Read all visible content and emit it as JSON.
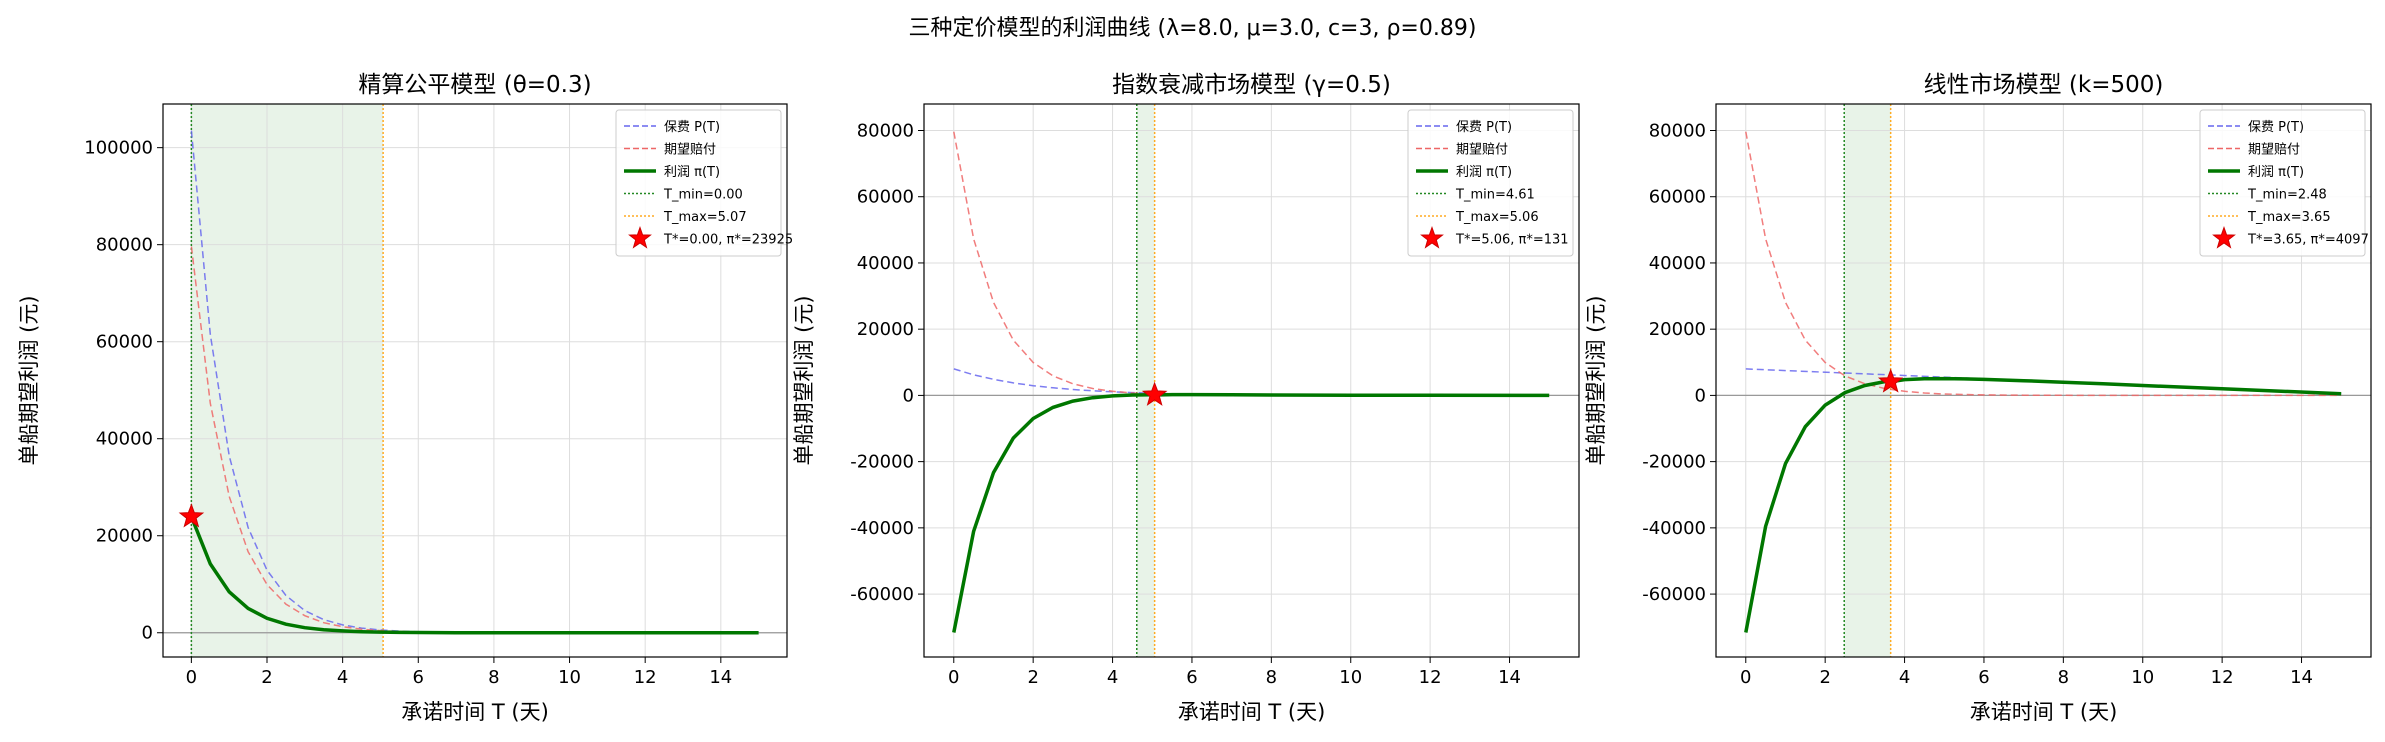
{
  "figure": {
    "suptitle": "三种定价模型的利润曲线  (λ=8.0, μ=3.0, c=3, ρ=0.89)"
  },
  "colors": {
    "premium": "#6666ee",
    "claims": "#ee6666",
    "profit": "#007700",
    "tmin": "#228822",
    "tmax": "#ffaa22",
    "star": "#ff0000",
    "shade": "#e8f3e8"
  },
  "chart_data": [
    {
      "type": "line",
      "title": "精算公平模型 (θ=0.3)",
      "xlabel": "承诺时间 T (天)",
      "ylabel": "单船期望利润 (元)",
      "xlim": [
        -0.75,
        15.75
      ],
      "ylim": [
        -5000,
        109000
      ],
      "xticks": [
        0,
        2,
        4,
        6,
        8,
        10,
        12,
        14
      ],
      "yticks": [
        0,
        20000,
        40000,
        60000,
        80000,
        100000
      ],
      "grid": true,
      "legend_position": "top-right",
      "legend": [
        "保费 P(T)",
        "期望赔付",
        "利润 π(T)",
        "T_min=0.00",
        "T_max=5.07",
        "T*=0.00, π*=23925"
      ],
      "series": [
        {
          "name": "保费 P(T)",
          "style": "dashed",
          "x": [
            0,
            0.5,
            1,
            1.5,
            2,
            2.5,
            3,
            3.5,
            4,
            4.5,
            5,
            5.5,
            6,
            7,
            8,
            9,
            10,
            12,
            15
          ],
          "y": [
            103500,
            61500,
            36500,
            21700,
            12900,
            7670,
            4560,
            2710,
            1610,
            957,
            569,
            338,
            201,
            71,
            25,
            9,
            3,
            0,
            0
          ]
        },
        {
          "name": "期望赔付",
          "style": "dashed",
          "x": [
            0,
            0.5,
            1,
            1.5,
            2,
            2.5,
            3,
            3.5,
            4,
            4.5,
            5,
            5.5,
            6,
            7,
            8,
            9,
            10,
            12,
            15
          ],
          "y": [
            79600,
            47300,
            28100,
            16700,
            9930,
            5900,
            3510,
            2080,
            1240,
            736,
            438,
            260,
            155,
            55,
            19,
            7,
            2,
            0,
            0
          ]
        },
        {
          "name": "利润 π(T)",
          "style": "solid",
          "x": [
            0,
            0.5,
            1,
            1.5,
            2,
            2.5,
            3,
            3.5,
            4,
            4.5,
            5,
            5.5,
            6,
            7,
            8,
            9,
            10,
            12,
            15
          ],
          "y": [
            23925,
            14200,
            8440,
            5020,
            2980,
            1770,
            1050,
            625,
            371,
            221,
            131,
            78,
            46,
            16,
            6,
            2,
            1,
            0,
            0
          ]
        }
      ],
      "T_min": 0.0,
      "T_max": 5.07,
      "optimum": {
        "T": 0.0,
        "profit": 23925
      }
    },
    {
      "type": "line",
      "title": "指数衰减市场模型 (γ=0.5)",
      "xlabel": "承诺时间 T (天)",
      "ylabel": "单船期望利润 (元)",
      "xlim": [
        -0.75,
        15.75
      ],
      "ylim": [
        -79000,
        88000
      ],
      "xticks": [
        0,
        2,
        4,
        6,
        8,
        10,
        12,
        14
      ],
      "yticks": [
        -60000,
        -40000,
        -20000,
        0,
        20000,
        40000,
        60000,
        80000
      ],
      "grid": true,
      "legend_position": "top-right",
      "legend": [
        "保费 P(T)",
        "期望赔付",
        "利润 π(T)",
        "T_min=4.61",
        "T_max=5.06",
        "T*=5.06, π*=131"
      ],
      "series": [
        {
          "name": "保费 P(T)",
          "style": "dashed",
          "x": [
            0,
            0.5,
            1,
            1.5,
            2,
            2.5,
            3,
            3.5,
            4,
            4.5,
            5,
            5.5,
            6,
            7,
            8,
            9,
            10,
            12,
            15
          ],
          "y": [
            8000,
            6230,
            4850,
            3780,
            2940,
            2290,
            1790,
            1390,
            1080,
            843,
            657,
            512,
            398,
            242,
            147,
            89,
            54,
            20,
            4
          ]
        },
        {
          "name": "期望赔付",
          "style": "dashed",
          "x": [
            0,
            0.5,
            1,
            1.5,
            2,
            2.5,
            3,
            3.5,
            4,
            4.5,
            5,
            5.5,
            6,
            7,
            8,
            9,
            10,
            12,
            15
          ],
          "y": [
            79600,
            47300,
            28100,
            16700,
            9930,
            5900,
            3510,
            2080,
            1240,
            736,
            438,
            260,
            155,
            55,
            19,
            7,
            2,
            0,
            0
          ]
        },
        {
          "name": "利润 π(T)",
          "style": "solid",
          "x": [
            0,
            0.5,
            1,
            1.5,
            2,
            2.5,
            3,
            3.5,
            4,
            4.5,
            5,
            5.06,
            5.5,
            6,
            7,
            8,
            9,
            10,
            12,
            15
          ],
          "y": [
            -71600,
            -41100,
            -23300,
            -12900,
            -6990,
            -3610,
            -1720,
            -690,
            -160,
            107,
            219,
            131,
            252,
            243,
            187,
            128,
            82,
            52,
            20,
            4
          ]
        }
      ],
      "T_min": 4.61,
      "T_max": 5.06,
      "optimum": {
        "T": 5.06,
        "profit": 131
      }
    },
    {
      "type": "line",
      "title": "线性市场模型 (k=500)",
      "xlabel": "承诺时间 T (天)",
      "ylabel": "单船期望利润 (元)",
      "xlim": [
        -0.75,
        15.75
      ],
      "ylim": [
        -79000,
        88000
      ],
      "xticks": [
        0,
        2,
        4,
        6,
        8,
        10,
        12,
        14
      ],
      "yticks": [
        -60000,
        -40000,
        -20000,
        0,
        20000,
        40000,
        60000,
        80000
      ],
      "grid": true,
      "legend_position": "top-right",
      "legend": [
        "保费 P(T)",
        "期望赔付",
        "利润 π(T)",
        "T_min=2.48",
        "T_max=3.65",
        "T*=3.65, π*=4097"
      ],
      "series": [
        {
          "name": "保费 P(T)",
          "style": "dashed",
          "x": [
            0,
            15
          ],
          "y": [
            8000,
            500
          ]
        },
        {
          "name": "期望赔付",
          "style": "dashed",
          "x": [
            0,
            0.5,
            1,
            1.5,
            2,
            2.5,
            3,
            3.5,
            4,
            4.5,
            5,
            5.5,
            6,
            7,
            8,
            9,
            10,
            12,
            15
          ],
          "y": [
            79600,
            47300,
            28100,
            16700,
            9930,
            5900,
            3510,
            2080,
            1240,
            736,
            438,
            260,
            155,
            55,
            19,
            7,
            2,
            0,
            0
          ]
        },
        {
          "name": "利润 π(T)",
          "style": "solid",
          "x": [
            0,
            0.5,
            1,
            1.5,
            2,
            2.5,
            3,
            3.5,
            3.65,
            4,
            4.5,
            5,
            5.5,
            6,
            7,
            8,
            9,
            10,
            12,
            15
          ],
          "y": [
            -71600,
            -39550,
            -20600,
            -9450,
            -2930,
            850,
            3000,
            4170,
            4097,
            4760,
            5010,
            5060,
            4990,
            4845,
            4445,
            3980,
            3490,
            2998,
            1999,
            500
          ]
        }
      ],
      "T_min": 2.48,
      "T_max": 3.65,
      "optimum": {
        "T": 3.65,
        "profit": 4097
      }
    }
  ]
}
